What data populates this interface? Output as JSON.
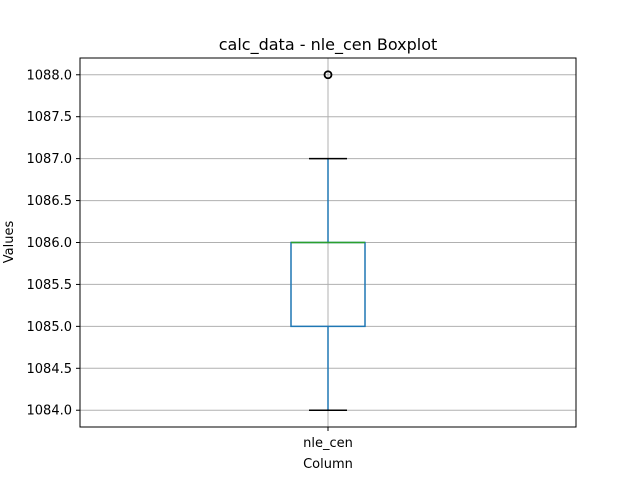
{
  "chart_data": {
    "type": "boxplot",
    "title": "calc_data - nle_cen Boxplot",
    "xlabel": "Column",
    "ylabel": "Values",
    "categories": [
      "nle_cen"
    ],
    "ylim": [
      1083.8,
      1088.2
    ],
    "yticks": [
      1084.0,
      1084.5,
      1085.0,
      1085.5,
      1086.0,
      1086.5,
      1087.0,
      1087.5,
      1088.0
    ],
    "grid": true,
    "boxes": [
      {
        "category": "nle_cen",
        "whisker_low": 1084.0,
        "q1": 1085.0,
        "median": 1086.0,
        "q3": 1086.0,
        "whisker_high": 1087.0,
        "outliers": [
          1088.0
        ]
      }
    ],
    "colors": {
      "box": "#1f77b4",
      "median": "#2ca02c",
      "whisker_cap": "#000000",
      "grid": "#b0b0b0",
      "outlier": "#000000"
    }
  }
}
